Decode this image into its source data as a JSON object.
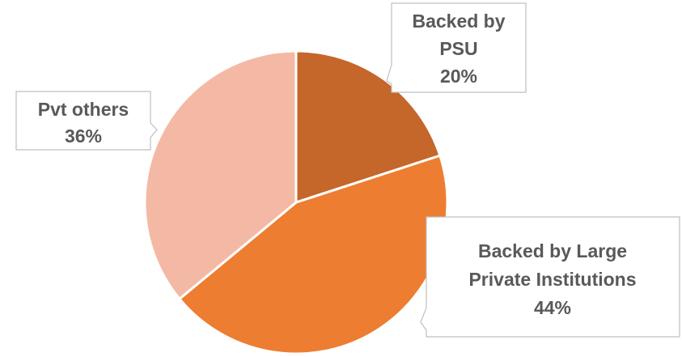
{
  "chart_data": {
    "type": "pie",
    "title": "",
    "slices": [
      {
        "label_lines": [
          "Backed by",
          "PSU"
        ],
        "value": 20,
        "value_label": "20%",
        "color": "#c5662a"
      },
      {
        "label_lines": [
          "Backed by Large",
          "Private Institutions"
        ],
        "value": 44,
        "value_label": "44%",
        "color": "#ed7d31"
      },
      {
        "label_lines": [
          "Pvt others"
        ],
        "value": 36,
        "value_label": "36%",
        "color": "#f4b9a4"
      }
    ],
    "start_angle_deg": 0,
    "direction": "clockwise",
    "legend": "none",
    "data_labels": "callouts"
  }
}
